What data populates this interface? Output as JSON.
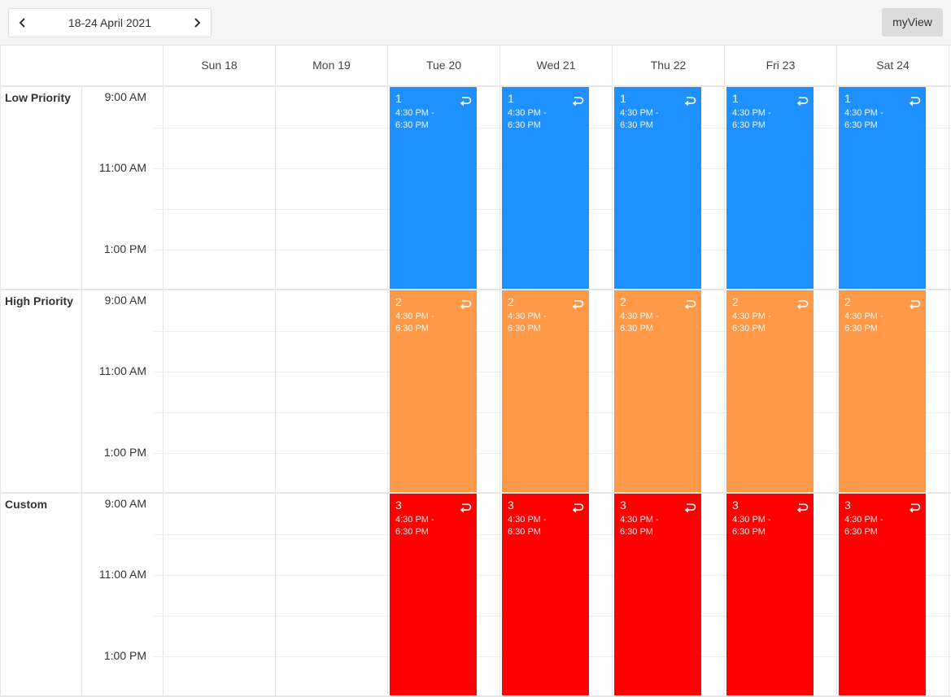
{
  "toolbar": {
    "date_range": "18-24 April 2021",
    "view_label": "myView"
  },
  "days": [
    {
      "label": "Sun 18"
    },
    {
      "label": "Mon 19"
    },
    {
      "label": "Tue 20"
    },
    {
      "label": "Wed 21"
    },
    {
      "label": "Thu 22"
    },
    {
      "label": "Fri 23"
    },
    {
      "label": "Sat 24"
    }
  ],
  "time_labels": [
    "9:00 AM",
    "11:00 AM",
    "1:00 PM"
  ],
  "groups": [
    {
      "label": "Low Priority",
      "event_title": "1",
      "color": "#1e90ff"
    },
    {
      "label": "High Priority",
      "event_title": "2",
      "color": "#ff9847"
    },
    {
      "label": "Custom",
      "event_title": "3",
      "color": "#ff0000"
    }
  ],
  "event_time": "4:30 PM - 6:30 PM",
  "event_days": [
    "Tue 20",
    "Wed 21",
    "Thu 22",
    "Fri 23",
    "Sat 24"
  ],
  "icons": {
    "prev": "chevron-left-icon",
    "next": "chevron-right-icon",
    "recurrence": "recurrence-icon"
  }
}
